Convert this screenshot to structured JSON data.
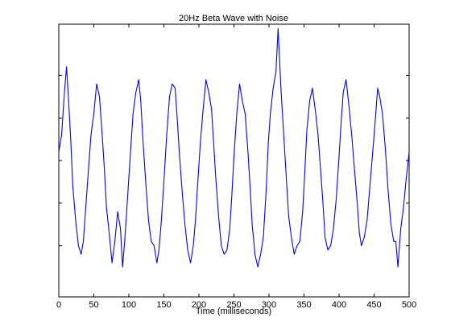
{
  "chart_data": {
    "type": "line",
    "title": "20Hz Beta Wave with Noise",
    "xlabel": "Time (milliseconds)",
    "ylabel": "",
    "xlim": [
      0,
      500
    ],
    "ylim": [
      -1.6,
      1.6
    ],
    "xticks": [
      0,
      50,
      100,
      150,
      200,
      250,
      300,
      350,
      400,
      450,
      500
    ],
    "yticks": [
      -1,
      -0.5,
      0,
      0.5,
      1
    ],
    "ytick_labels_shown": false,
    "grid": false,
    "line_color": "#0000ff",
    "series": [
      {
        "x": [
          0,
          4,
          8,
          11,
          14,
          17,
          20,
          24,
          28,
          32,
          35,
          38,
          42,
          46,
          50,
          54,
          58,
          62,
          65,
          68,
          72,
          76,
          80,
          84,
          88,
          91,
          94,
          98,
          102,
          106,
          110,
          114,
          117,
          120,
          124,
          128,
          132,
          136,
          140,
          143,
          146,
          150,
          154,
          158,
          162,
          166,
          169,
          172,
          176,
          180,
          184,
          188,
          192,
          195,
          198,
          202,
          206,
          210,
          214,
          218,
          221,
          224,
          228,
          232,
          236,
          240,
          244,
          247,
          250,
          254,
          258,
          262,
          266,
          270,
          273,
          276,
          280,
          284,
          288,
          292,
          296,
          299,
          302,
          306,
          310,
          313,
          317,
          321,
          325,
          328,
          332,
          336,
          340,
          344,
          348,
          351,
          354,
          358,
          362,
          366,
          370,
          374,
          377,
          380,
          384,
          388,
          392,
          396,
          400,
          403,
          406,
          410,
          414,
          418,
          422,
          426,
          429,
          432,
          436,
          440,
          444,
          448,
          452,
          455,
          458,
          462,
          466,
          470,
          474,
          478,
          481,
          484,
          488,
          492,
          496,
          500
        ],
        "y": [
          0.1,
          0.3,
          0.8,
          1.1,
          0.7,
          0.25,
          -0.3,
          -0.7,
          -1.0,
          -1.1,
          -0.95,
          -0.6,
          -0.15,
          0.3,
          0.55,
          0.9,
          0.75,
          0.3,
          -0.1,
          -0.55,
          -0.85,
          -1.2,
          -0.95,
          -0.6,
          -0.8,
          -1.25,
          -0.95,
          -0.45,
          0.05,
          0.55,
          0.8,
          0.95,
          0.7,
          0.25,
          -0.25,
          -0.7,
          -0.95,
          -1.0,
          -1.2,
          -1.05,
          -0.75,
          -0.25,
          0.3,
          0.75,
          0.9,
          0.85,
          0.5,
          0.1,
          -0.35,
          -0.75,
          -1.05,
          -1.2,
          -1.0,
          -0.7,
          -0.3,
          0.2,
          0.6,
          0.95,
          0.8,
          0.6,
          0.2,
          -0.2,
          -0.65,
          -1.0,
          -1.1,
          -1.05,
          -0.8,
          -0.4,
          0.05,
          0.55,
          0.9,
          0.7,
          0.55,
          0.1,
          -0.3,
          -0.75,
          -1.1,
          -1.25,
          -1.1,
          -0.9,
          -0.35,
          0.2,
          0.55,
          0.85,
          1.05,
          1.55,
          0.85,
          0.3,
          -0.25,
          -0.65,
          -0.9,
          -1.1,
          -1.0,
          -0.95,
          -0.6,
          -0.15,
          0.35,
          0.7,
          0.85,
          0.6,
          0.3,
          -0.15,
          -0.5,
          -0.9,
          -1.05,
          -1.0,
          -0.8,
          -0.45,
          0.05,
          0.45,
          0.8,
          0.95,
          0.65,
          0.3,
          -0.1,
          -0.5,
          -0.85,
          -1.0,
          -0.9,
          -0.7,
          -0.3,
          0.1,
          0.5,
          0.85,
          0.75,
          0.55,
          0.15,
          -0.35,
          -0.75,
          -0.95,
          -0.95,
          -1.25,
          -0.8,
          -0.55,
          -0.2,
          0.1
        ]
      }
    ]
  }
}
